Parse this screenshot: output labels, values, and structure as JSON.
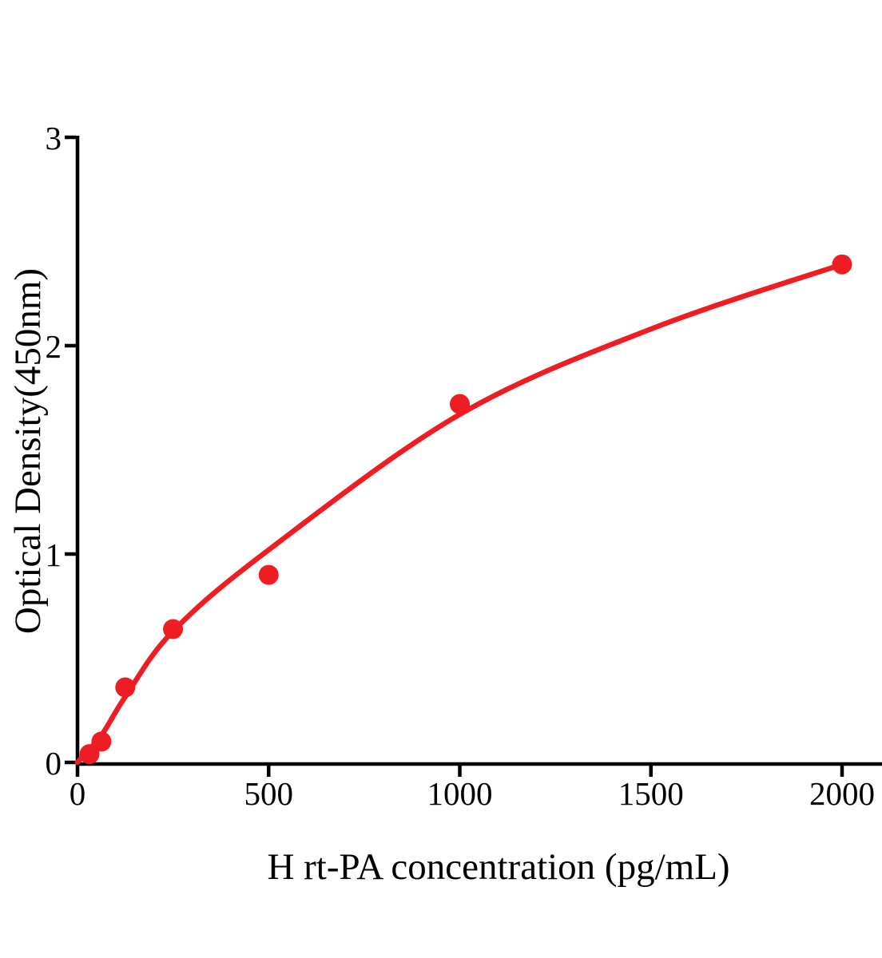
{
  "figure": {
    "background": "#ffffff",
    "axis_color": "#000000",
    "accent_red": "#ee1c23"
  },
  "chart_data": {
    "type": "scatter",
    "title": "",
    "xlabel": "H rt-PA concentration (pg/mL)",
    "ylabel": "Optical Density(450nm)",
    "xlim": [
      0,
      2100
    ],
    "ylim": [
      0,
      3
    ],
    "grid": false,
    "legend": false,
    "x_ticks": [
      0,
      500,
      1000,
      1500,
      2000
    ],
    "x_tick_labels": [
      "0",
      "500",
      "1000",
      "1500",
      "2000"
    ],
    "y_ticks": [
      0,
      1,
      2,
      3
    ],
    "y_tick_labels": [
      "0",
      "1",
      "2",
      "3"
    ],
    "series": [
      {
        "name": "standard-points",
        "type": "scatter",
        "color": "#ee1c23",
        "marker_radius": 12.5,
        "x": [
          31.25,
          62.5,
          125,
          250,
          500,
          1000,
          2000
        ],
        "y": [
          0.04,
          0.1,
          0.36,
          0.64,
          0.9,
          1.72,
          2.39
        ]
      },
      {
        "name": "fitted-curve",
        "type": "line",
        "color": "#ee1c23",
        "stroke_width": 6.5,
        "x": [
          0,
          62.5,
          125,
          250,
          500,
          1000,
          1500,
          2000
        ],
        "y": [
          0.0,
          0.13,
          0.315,
          0.63,
          1.02,
          1.67,
          2.08,
          2.39
        ]
      }
    ]
  }
}
